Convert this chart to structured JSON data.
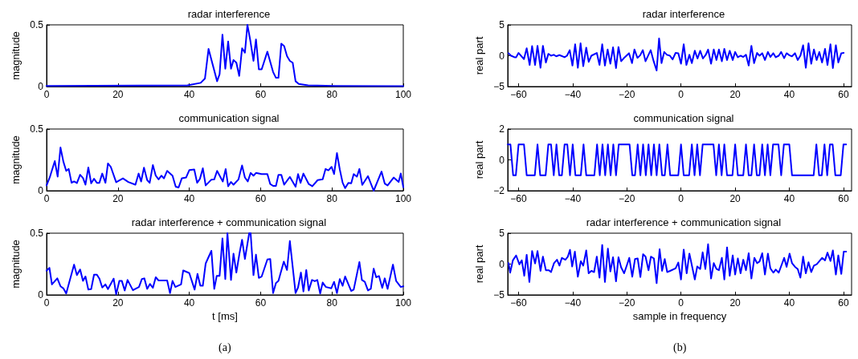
{
  "chart_data": [
    {
      "type": "line",
      "title": "radar interference",
      "ylabel": "magnitude",
      "color": "#0000ff",
      "xlim": [
        0,
        100
      ],
      "ylim": [
        0,
        0.5
      ],
      "xticks": [
        0,
        20,
        40,
        60,
        80,
        100
      ],
      "yticks": [
        0,
        0.5
      ],
      "x": [
        0,
        39.5,
        43.2,
        44.4,
        45.4,
        47.8,
        48.5,
        49.3,
        50.1,
        50.9,
        51.7,
        52.4,
        53.2,
        54.0,
        54.8,
        55.6,
        56.3,
        57.1,
        58.0,
        58.7,
        59.5,
        60.3,
        61.9,
        63.5,
        64.3,
        65.0,
        65.8,
        66.6,
        67.4,
        68.2,
        69.0,
        69.8,
        70.7,
        73.3,
        80.8,
        100
      ],
      "values": [
        0.005,
        0.01,
        0.03,
        0.065,
        0.305,
        0.043,
        0.1,
        0.42,
        0.145,
        0.365,
        0.145,
        0.215,
        0.193,
        0.086,
        0.31,
        0.275,
        0.5,
        0.375,
        0.208,
        0.382,
        0.14,
        0.14,
        0.283,
        0.118,
        0.071,
        0.071,
        0.348,
        0.328,
        0.247,
        0.208,
        0.193,
        0.043,
        0.021,
        0.01,
        0.005,
        0.003
      ]
    },
    {
      "type": "line",
      "title": "communication signal",
      "ylabel": "magnitude",
      "color": "#0000ff",
      "xlim": [
        0,
        100
      ],
      "ylim": [
        0,
        0.5
      ],
      "xticks": [
        0,
        20,
        40,
        60,
        80,
        100
      ],
      "yticks": [
        0,
        0.5
      ],
      "x": [
        0,
        1,
        2.3,
        3.1,
        3.9,
        4.7,
        5.5,
        6.2,
        7.0,
        7.7,
        8.5,
        9.4,
        10.2,
        10.9,
        11.7,
        12.5,
        13.3,
        14.1,
        14.8,
        15.6,
        16.5,
        17.2,
        18.0,
        19.5,
        21.4,
        22.9,
        24.9,
        25.8,
        26.5,
        27.3,
        28.2,
        28.9,
        29.8,
        30.6,
        31.4,
        32.2,
        32.9,
        33.8,
        35.3,
        36.2,
        37.0,
        37.9,
        39.1,
        40.0,
        41.4,
        42.2,
        43.0,
        43.8,
        44.6,
        46.2,
        47.0,
        47.8,
        49.4,
        50.2,
        50.9,
        51.7,
        52.4,
        53.8,
        54.8,
        55.6,
        56.4,
        57.2,
        58.0,
        58.7,
        60.3,
        61.9,
        62.7,
        63.5,
        64.3,
        65.0,
        65.8,
        66.6,
        68.2,
        69.8,
        70.5,
        71.2,
        72.0,
        73.5,
        74.5,
        76.0,
        77.4,
        78.2,
        79.0,
        79.9,
        80.6,
        81.4,
        82.2,
        83.0,
        83.7,
        84.6,
        85.4,
        86.1,
        87.0,
        87.7,
        88.5,
        90.1,
        91.7,
        93.9,
        94.8,
        95.6,
        97.3,
        98.7,
        99.3,
        100
      ],
      "values": [
        0.043,
        0.118,
        0.24,
        0.114,
        0.35,
        0.236,
        0.161,
        0.176,
        0.064,
        0.075,
        0.062,
        0.129,
        0.103,
        0.049,
        0.189,
        0.06,
        0.097,
        0.064,
        0.064,
        0.139,
        0.064,
        0.221,
        0.193,
        0.069,
        0.1,
        0.071,
        0.049,
        0.139,
        0.075,
        0.187,
        0.086,
        0.064,
        0.208,
        0.122,
        0.092,
        0.122,
        0.1,
        0.161,
        0.122,
        0.032,
        0.026,
        0.1,
        0.107,
        0.167,
        0.172,
        0.064,
        0.097,
        0.182,
        0.043,
        0.09,
        0.092,
        0.161,
        0.075,
        0.176,
        0.036,
        0.071,
        0.049,
        0.092,
        0.204,
        0.107,
        0.075,
        0.144,
        0.122,
        0.144,
        0.135,
        0.135,
        0.054,
        0.039,
        0.039,
        0.129,
        0.129,
        0.049,
        0.112,
        0.032,
        0.135,
        0.064,
        0.139,
        0.054,
        0.036,
        0.086,
        0.092,
        0.176,
        0.165,
        0.193,
        0.135,
        0.305,
        0.172,
        0.064,
        0.021,
        0.064,
        0.06,
        0.135,
        0.114,
        0.176,
        0.047,
        0.118,
        0.0,
        0.155,
        0.058,
        0.043,
        0.107,
        0.071,
        0.139,
        0.028
      ]
    },
    {
      "type": "line",
      "title": "radar interference + communication signal",
      "xlabel": "t [ms]",
      "ylabel": "magnitude",
      "color": "#0000ff",
      "xlim": [
        0,
        100
      ],
      "ylim": [
        0,
        0.5
      ],
      "xticks": [
        0,
        20,
        40,
        60,
        80,
        100
      ],
      "yticks": [
        0,
        0.5
      ],
      "annotations": [
        "(a)"
      ],
      "x": [
        0,
        0.8,
        1.5,
        3.0,
        3.9,
        4.7,
        5.5,
        7.7,
        8.5,
        9.4,
        10.2,
        10.9,
        11.7,
        12.5,
        13.3,
        14.1,
        14.8,
        15.6,
        16.5,
        17.2,
        18.8,
        19.5,
        20.4,
        21.1,
        21.9,
        22.7,
        24.2,
        25.9,
        26.7,
        27.4,
        28.2,
        29.0,
        29.8,
        30.6,
        31.4,
        33.8,
        34.6,
        35.3,
        36.1,
        37.7,
        38.3,
        40.0,
        41.5,
        42.3,
        43.1,
        43.8,
        44.6,
        46.2,
        47.0,
        47.7,
        48.5,
        49.3,
        50.1,
        50.7,
        51.7,
        52.4,
        53.2,
        54.1,
        54.8,
        55.6,
        56.8,
        57.2,
        58.0,
        58.7,
        59.5,
        60.3,
        61.9,
        62.7,
        63.5,
        64.3,
        65.0,
        66.5,
        67.4,
        68.2,
        69.8,
        70.5,
        71.3,
        72.0,
        72.8,
        73.5,
        74.4,
        75.2,
        75.9,
        76.7,
        77.4,
        78.3,
        79.8,
        80.6,
        81.4,
        82.2,
        83.0,
        83.7,
        85.4,
        86.1,
        87.7,
        88.4,
        89.2,
        90.1,
        90.9,
        91.7,
        92.4,
        93.2,
        94.1,
        94.8,
        95.6,
        97.1,
        98.0,
        99.3,
        100
      ],
      "values": [
        0.196,
        0.219,
        0.085,
        0.134,
        0.07,
        0.053,
        0.011,
        0.245,
        0.16,
        0.206,
        0.113,
        0.149,
        0.043,
        0.047,
        0.164,
        0.164,
        0.132,
        0.06,
        0.085,
        0.047,
        0.132,
        0.004,
        0.113,
        0.113,
        0.036,
        0.121,
        0.038,
        0.064,
        0.128,
        0.134,
        0.049,
        0.089,
        0.057,
        0.143,
        0.117,
        0.117,
        0.015,
        0.113,
        0.064,
        0.085,
        0.198,
        0.177,
        0.043,
        0.17,
        0.074,
        0.074,
        0.255,
        0.357,
        0.049,
        0.155,
        0.155,
        0.457,
        0.128,
        0.5,
        0.121,
        0.334,
        0.181,
        0.34,
        0.447,
        0.291,
        0.5,
        0.5,
        0.16,
        0.326,
        0.138,
        0.149,
        0.287,
        0.291,
        0.015,
        0.096,
        0.113,
        0.27,
        0.202,
        0.436,
        0.015,
        0.06,
        0.181,
        0.028,
        0.202,
        0.036,
        0.121,
        0.111,
        0.121,
        0.011,
        0.1,
        0.064,
        0.053,
        0.106,
        0.015,
        0.128,
        0.074,
        0.149,
        0.032,
        0.043,
        0.266,
        0.121,
        0.106,
        0.036,
        0.049,
        0.213,
        0.143,
        0.153,
        0.057,
        0.134,
        0.049,
        0.245,
        0.113,
        0.064,
        0.07
      ]
    },
    {
      "type": "line",
      "title": "radar interference",
      "ylabel": "real part",
      "color": "#0000ff",
      "xlim": [
        -64,
        63
      ],
      "ylim": [
        -5,
        5
      ],
      "xticks": [
        -60,
        -40,
        -20,
        0,
        20,
        40,
        60
      ],
      "yticks": [
        -5,
        0,
        5
      ],
      "x": [
        -63.7,
        -62.8,
        -61.5,
        -60.9,
        -60,
        -58,
        -57,
        -55.9,
        -55,
        -53.9,
        -53,
        -51.9,
        -51,
        -49.9,
        -49,
        -48,
        -47,
        -46.1,
        -44.9,
        -43,
        -42.1,
        -41.1,
        -40.1,
        -39.1,
        -38.1,
        -37.1,
        -36.1,
        -35,
        -34.1,
        -33.1,
        -31.1,
        -30.1,
        -29.1,
        -28.1,
        -27.1,
        -26.1,
        -25.1,
        -24,
        -23.1,
        -22.1,
        -21.1,
        -19.2,
        -18.1,
        -17.2,
        -16.1,
        -15.1,
        -14.1,
        -13.1,
        -11.2,
        -10.1,
        -9,
        -8.1,
        -7.2,
        -6.2,
        -5.2,
        -4.1,
        -3.1,
        -2,
        -1,
        0,
        1,
        2,
        3.1,
        4,
        5.1,
        6.1,
        7.1,
        8.1,
        9.1,
        10,
        11.1,
        12.1,
        13.1,
        14,
        15.1,
        16,
        17,
        18,
        19.1,
        20,
        21,
        22,
        23,
        24,
        25,
        26,
        27,
        28.1,
        29,
        30,
        31,
        32.1,
        33,
        34.1,
        35,
        36.1,
        37,
        38.1,
        39,
        40.1,
        41,
        42.1,
        43.1,
        44.1,
        45.1,
        46.1,
        47.1,
        48.1,
        49.1,
        50.1,
        51.1,
        52.1,
        53.2,
        54.1,
        55.2,
        56.1,
        57.2,
        58.1,
        59.2,
        60.1
      ],
      "values": [
        0.4,
        0,
        -0.25,
        -0.25,
        0.45,
        -0.55,
        1.2,
        -1.5,
        1.55,
        -1.5,
        1.6,
        -1.95,
        1.6,
        -1.1,
        0.3,
        0,
        0.15,
        -0.1,
        0.1,
        -0.25,
        0,
        0.9,
        -1.6,
        1.85,
        -1.95,
        2.0,
        -1.7,
        1.3,
        -1.0,
        0,
        0.45,
        -1.5,
        1.85,
        -1.6,
        1.0,
        -1.3,
        1.35,
        -2.0,
        1.4,
        -0.9,
        -0.4,
        0.4,
        -1.2,
        1.0,
        -0.35,
        0.05,
        0.9,
        -0.9,
        0.9,
        -0.9,
        -2.4,
        2.8,
        -1.2,
        0.6,
        0.15,
        0,
        -0.6,
        0.45,
        0.4,
        -1.3,
        1.85,
        -1.5,
        0.15,
        -1.2,
        0.8,
        -0.45,
        0.8,
        -0.45,
        0.1,
        1.0,
        -1.3,
        1.0,
        -0.7,
        1.0,
        -0.9,
        1.1,
        -0.7,
        0.8,
        -0.7,
        0.6,
        -0.25,
        0,
        -0.2,
        0.15,
        -1.6,
        1.6,
        -1.2,
        0.45,
        0,
        0.4,
        -0.7,
        0.6,
        -0.2,
        0.4,
        -0.25,
        0,
        0.6,
        -0.4,
        0.4,
        0.05,
        -0.1,
        0.4,
        -0.7,
        0,
        1.7,
        -1.95,
        2.0,
        -1.3,
        1.0,
        -0.7,
        0.6,
        -1.1,
        1.1,
        -1.5,
        1.85,
        -2.0,
        1.7,
        -1.1,
        0.4,
        0.45
      ]
    },
    {
      "type": "line",
      "title": "communication signal",
      "ylabel": "real part",
      "color": "#0000ff",
      "xlim": [
        -64,
        63
      ],
      "ylim": [
        -2,
        2
      ],
      "xticks": [
        -60,
        -40,
        -20,
        0,
        20,
        40,
        60
      ],
      "yticks": [
        -2,
        0,
        2
      ],
      "x": [
        -64,
        -63,
        -62,
        -61,
        -60,
        -59,
        -58,
        -57,
        -56,
        -55,
        -54,
        -53,
        -52,
        -51,
        -50,
        -49,
        -48,
        -47,
        -46,
        -45,
        -44,
        -43,
        -42,
        -41,
        -40,
        -39,
        -38,
        -37,
        -36,
        -35,
        -34,
        -33,
        -32,
        -31,
        -30,
        -29,
        -28,
        -27,
        -26,
        -25,
        -24,
        -23,
        -22,
        -21,
        -20,
        -19,
        -18,
        -17,
        -16,
        -15,
        -14,
        -13,
        -12,
        -11,
        -10,
        -9,
        -8,
        -7,
        -6,
        -5,
        -4,
        -3,
        -2,
        -1,
        0,
        1,
        2,
        3,
        4,
        5,
        6,
        7,
        8,
        9,
        10,
        11,
        12,
        13,
        14,
        15,
        16,
        17,
        18,
        19,
        20,
        21,
        22,
        23,
        24,
        25,
        26,
        27,
        28,
        29,
        30,
        31,
        32,
        33,
        34,
        35,
        36,
        37,
        38,
        39,
        40,
        41,
        42,
        43,
        44,
        45,
        46,
        47,
        48,
        49,
        50,
        51,
        52,
        53,
        54,
        55,
        56,
        57,
        58,
        59,
        60,
        61
      ],
      "values": [
        1,
        1,
        -1,
        -1,
        1,
        1,
        1,
        -1,
        -1,
        -1,
        -1,
        1,
        -1,
        -1,
        -1,
        1,
        1,
        -1,
        1,
        -1,
        -1,
        1,
        1,
        -1,
        1,
        -1,
        -1,
        -1,
        1,
        -1,
        -1,
        -1,
        -1,
        1,
        -1,
        1,
        -1,
        1,
        -1,
        1,
        -1,
        1,
        1,
        1,
        1,
        1,
        -1,
        -1,
        1,
        -1,
        1,
        -1,
        1,
        -1,
        1,
        -1,
        1,
        -1,
        -1,
        1,
        -1,
        -1,
        -1,
        -1,
        1,
        -1,
        -1,
        -1,
        1,
        -1,
        1,
        -1,
        1,
        1,
        1,
        1,
        1,
        -1,
        1,
        -1,
        1,
        -1,
        -1,
        -1,
        1,
        -1,
        -1,
        -1,
        1,
        -1,
        -1,
        1,
        -1,
        -1,
        1,
        -1,
        1,
        -1,
        1,
        1,
        1,
        -1,
        1,
        1,
        1,
        -1,
        -1,
        -1,
        -1,
        -1,
        -1,
        -1,
        -1,
        -1,
        1,
        -1,
        -1,
        1,
        -1,
        1,
        1,
        -1,
        -1,
        -1,
        1,
        1
      ]
    },
    {
      "type": "line",
      "title": "radar interference + communication signal",
      "xlabel": "sample in frequency",
      "ylabel": "real part",
      "color": "#0000ff",
      "xlim": [
        -64,
        63
      ],
      "ylim": [
        -5,
        5
      ],
      "xticks": [
        -60,
        -40,
        -20,
        0,
        20,
        40,
        60
      ],
      "yticks": [
        -5,
        0,
        5
      ],
      "annotations": [
        "(b)"
      ],
      "x": [
        -63.7,
        -63.1,
        -62.1,
        -60.9,
        -59.7,
        -58.8,
        -57.9,
        -57,
        -56,
        -55,
        -53.9,
        -53,
        -51.9,
        -51,
        -49.9,
        -48.8,
        -48,
        -46.9,
        -45.8,
        -44.9,
        -44,
        -42.7,
        -41.8,
        -41,
        -40.2,
        -39.2,
        -38.1,
        -37,
        -36.1,
        -35,
        -34.1,
        -33.1,
        -32.1,
        -31.1,
        -30.1,
        -29.1,
        -28.1,
        -27,
        -26.1,
        -25.1,
        -24,
        -23.1,
        -22.1,
        -21,
        -20,
        -19.1,
        -18,
        -17,
        -16,
        -15,
        -14,
        -13.1,
        -12,
        -11.1,
        -10,
        -9,
        -7.9,
        -7,
        -6,
        -5.1,
        -4,
        -2,
        -1,
        0,
        1,
        2.1,
        3.1,
        5.1,
        6,
        7.1,
        8,
        9,
        10,
        11.1,
        12.1,
        13.1,
        14,
        15.1,
        16,
        17,
        18,
        19.1,
        20,
        21,
        22,
        23,
        24,
        25,
        26,
        27.1,
        28.1,
        29,
        30,
        31,
        32.1,
        33,
        34.1,
        35,
        36.1,
        38.1,
        39,
        40.1,
        41,
        42.1,
        43.1,
        44.1,
        45.1,
        46.1,
        47.1,
        48.1,
        49.1,
        50.1,
        52.1,
        53.2,
        54.1,
        55.2,
        56.1,
        57.2,
        58.1,
        59.2,
        60.1,
        61
      ],
      "values": [
        0.15,
        -1.4,
        0.6,
        1.4,
        -0.05,
        0.6,
        -1.9,
        1.5,
        -2.9,
        2.1,
        0.1,
        2.1,
        -1.1,
        1.2,
        -1.0,
        -1.0,
        -1.3,
        0.15,
        0.7,
        -0.25,
        1.0,
        0.7,
        1.2,
        2.3,
        -0.4,
        2.0,
        -2.05,
        0.45,
        -0.25,
        2.2,
        -1.5,
        -1.1,
        -1.3,
        1.2,
        -2.2,
        3.1,
        -2.9,
        2.5,
        -1.2,
        1.1,
        -2.8,
        1.1,
        -0.55,
        -1.5,
        -0.2,
        1.0,
        -2.05,
        0.8,
        0.9,
        -2.1,
        1.6,
        1.2,
        -1.0,
        1.2,
        0.9,
        -3.1,
        2.4,
        -1.1,
        0.8,
        -1.3,
        -1.1,
        -0.7,
        0.25,
        -2.5,
        2.35,
        -1.5,
        1.7,
        -2.5,
        -0.4,
        -0.8,
        1.9,
        -0.8,
        3.2,
        -2.35,
        0.15,
        -0.8,
        -1.0,
        1.0,
        -2.5,
        2.7,
        -1.9,
        1.4,
        -1.7,
        0.9,
        -1.5,
        0.7,
        -1.0,
        1.75,
        -2.35,
        1.0,
        0.15,
        0.4,
        1.75,
        -1.7,
        1.7,
        -0.7,
        -1.4,
        -0.9,
        -1.4,
        1.0,
        -0.45,
        1.7,
        0.15,
        -0.45,
        -0.8,
        -2.2,
        1.2,
        -1.5,
        0.3,
        -1.3,
        -0.25,
        -0.05,
        1.0,
        0.6,
        1.85,
        0.5,
        2.2,
        -1.7,
        1.4,
        -1.6,
        2.0,
        2.0
      ]
    }
  ]
}
